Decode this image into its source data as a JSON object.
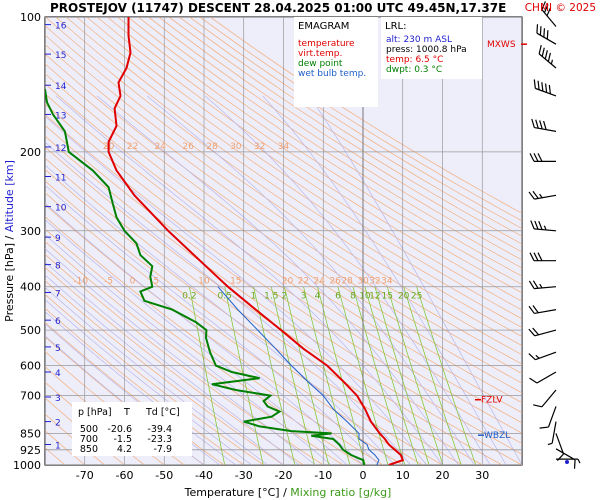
{
  "header": {
    "title": "PROSTEJOV (11747)   DESCENT   28.04.2025 01:00 UTC  49.45N,17.37E",
    "credit": "CHMI © 2025"
  },
  "colors": {
    "plot_bg": "#eeeefa",
    "temperature": "#e00000",
    "dewpoint": "#008000",
    "wetbulb": "#1f5fc8",
    "isotherm": "#8a8a8a",
    "dry_adiabat": "#f2b58a",
    "moist_adiabat": "#bbb7e8",
    "mixing_ratio": "#88c83a",
    "isobar": "#999999",
    "wind": "#000000"
  },
  "legend": {
    "title": "EMAGRAM",
    "items": [
      {
        "label": "temperature",
        "color": "#e00000"
      },
      {
        "label": "virt.temp.",
        "color": "#e00000"
      },
      {
        "label": "dew point",
        "color": "#008000"
      },
      {
        "label": "wet bulb temp.",
        "color": "#1f5fc8"
      }
    ]
  },
  "lrl": {
    "title": "LRL:",
    "alt": "alt: 230 m ASL",
    "press": "press: 1000.8 hPa",
    "temp": "temp: 6.5 °C",
    "dwpt": "dwpt: 0.3 °C"
  },
  "table": {
    "headers": [
      "p [hPa]",
      "T",
      "Td [°C]"
    ],
    "rows": [
      [
        "500",
        "-20.6",
        "-39.4"
      ],
      [
        "700",
        "-1.5",
        "-23.3"
      ],
      [
        "850",
        "4.2",
        "-7.9"
      ]
    ]
  },
  "markers": [
    "MXWS",
    "FZLV",
    "WBZL"
  ],
  "chart_data": {
    "type": "line",
    "title": "PROSTEJOV (11747)   DESCENT   28.04.2025 01:00 UTC  49.45N,17.37E",
    "xlabel": "Temperature [°C]  /  Mixing ratio [g/kg]",
    "ylabel": "Pressure [hPa]  /  Altitude [km]",
    "xlim": [
      -80,
      40
    ],
    "ylim": [
      1000,
      100
    ],
    "y_scale": "log-pressure",
    "x_ticks": [
      -70,
      -60,
      -50,
      -40,
      -30,
      -20,
      -10,
      0,
      10,
      20,
      30
    ],
    "pressure_ticks": [
      100,
      200,
      300,
      400,
      500,
      600,
      700,
      850,
      925,
      1000
    ],
    "altitude_km_ticks": [
      {
        "km": 1,
        "p": 900
      },
      {
        "km": 2,
        "p": 800
      },
      {
        "km": 3,
        "p": 705
      },
      {
        "km": 4,
        "p": 620
      },
      {
        "km": 5,
        "p": 545
      },
      {
        "km": 6,
        "p": 475
      },
      {
        "km": 7,
        "p": 412
      },
      {
        "km": 8,
        "p": 357
      },
      {
        "km": 9,
        "p": 310
      },
      {
        "km": 10,
        "p": 265
      },
      {
        "km": 11,
        "p": 227
      },
      {
        "km": 12,
        "p": 195
      },
      {
        "km": 13,
        "p": 165
      },
      {
        "km": 14,
        "p": 142
      },
      {
        "km": 15,
        "p": 121
      },
      {
        "km": 16,
        "p": 104
      }
    ],
    "dry_adiabat_labels": [
      {
        "label": "20",
        "t": -64,
        "p": 200
      },
      {
        "label": "22",
        "t": -58,
        "p": 200
      },
      {
        "label": "24",
        "t": -51,
        "p": 200
      },
      {
        "label": "26",
        "t": -44,
        "p": 200
      },
      {
        "label": "28",
        "t": -38,
        "p": 200
      },
      {
        "label": "30",
        "t": -32,
        "p": 200
      },
      {
        "label": "32",
        "t": -26,
        "p": 200
      },
      {
        "label": "34",
        "t": -20,
        "p": 200
      },
      {
        "label": "-10",
        "t": -71,
        "p": 400
      },
      {
        "label": "-5",
        "t": -64,
        "p": 400
      },
      {
        "label": "0",
        "t": -58,
        "p": 400
      },
      {
        "label": "5",
        "t": -52,
        "p": 400
      },
      {
        "label": "10",
        "t": -40,
        "p": 400
      },
      {
        "label": "15",
        "t": -32,
        "p": 400
      },
      {
        "label": "20",
        "t": -19,
        "p": 400
      },
      {
        "label": "22",
        "t": -15,
        "p": 400
      },
      {
        "label": "24",
        "t": -11,
        "p": 400
      },
      {
        "label": "26",
        "t": -7,
        "p": 400
      },
      {
        "label": "28",
        "t": -4,
        "p": 400
      },
      {
        "label": "30",
        "t": 0,
        "p": 400
      },
      {
        "label": "32",
        "t": 3,
        "p": 400
      },
      {
        "label": "34",
        "t": 6,
        "p": 400
      }
    ],
    "mixing_ratio_lines": [
      0.2,
      0.5,
      1,
      1.5,
      2,
      3,
      4,
      6,
      8,
      10,
      12,
      15,
      20,
      25
    ],
    "series": [
      {
        "name": "temperature",
        "points": [
          {
            "p": 1000,
            "t": 6.5
          },
          {
            "p": 975,
            "t": 10.0
          },
          {
            "p": 950,
            "t": 9.5
          },
          {
            "p": 925,
            "t": 8.0
          },
          {
            "p": 900,
            "t": 6.5
          },
          {
            "p": 875,
            "t": 5.5
          },
          {
            "p": 850,
            "t": 4.2
          },
          {
            "p": 800,
            "t": 2.0
          },
          {
            "p": 750,
            "t": 0.5
          },
          {
            "p": 700,
            "t": -1.5
          },
          {
            "p": 650,
            "t": -5.0
          },
          {
            "p": 600,
            "t": -9.0
          },
          {
            "p": 550,
            "t": -15.0
          },
          {
            "p": 500,
            "t": -20.6
          },
          {
            "p": 450,
            "t": -27.0
          },
          {
            "p": 400,
            "t": -34.0
          },
          {
            "p": 350,
            "t": -41.0
          },
          {
            "p": 300,
            "t": -49.0
          },
          {
            "p": 250,
            "t": -57.5
          },
          {
            "p": 220,
            "t": -62.0
          },
          {
            "p": 200,
            "t": -64.0
          },
          {
            "p": 190,
            "t": -64.0
          },
          {
            "p": 175,
            "t": -62.0
          },
          {
            "p": 160,
            "t": -62.5
          },
          {
            "p": 150,
            "t": -61.0
          },
          {
            "p": 140,
            "t": -61.5
          },
          {
            "p": 130,
            "t": -59.5
          },
          {
            "p": 120,
            "t": -58.5
          },
          {
            "p": 110,
            "t": -59.0
          },
          {
            "p": 100,
            "t": -59.0
          }
        ]
      },
      {
        "name": "dew point",
        "points": [
          {
            "p": 1000,
            "t": 0.3
          },
          {
            "p": 975,
            "t": 0.0
          },
          {
            "p": 950,
            "t": -3.0
          },
          {
            "p": 925,
            "t": -5.0
          },
          {
            "p": 900,
            "t": -6.0
          },
          {
            "p": 875,
            "t": -7.5
          },
          {
            "p": 860,
            "t": -13.0
          },
          {
            "p": 850,
            "t": -7.9
          },
          {
            "p": 840,
            "t": -18.0
          },
          {
            "p": 820,
            "t": -26.0
          },
          {
            "p": 800,
            "t": -30.0
          },
          {
            "p": 780,
            "t": -23.0
          },
          {
            "p": 760,
            "t": -21.0
          },
          {
            "p": 740,
            "t": -24.0
          },
          {
            "p": 720,
            "t": -25.0
          },
          {
            "p": 700,
            "t": -23.3
          },
          {
            "p": 680,
            "t": -32.0
          },
          {
            "p": 660,
            "t": -38.0
          },
          {
            "p": 640,
            "t": -26.0
          },
          {
            "p": 620,
            "t": -33.0
          },
          {
            "p": 600,
            "t": -37.0
          },
          {
            "p": 560,
            "t": -38.5
          },
          {
            "p": 520,
            "t": -39.5
          },
          {
            "p": 500,
            "t": -39.4
          },
          {
            "p": 480,
            "t": -42.0
          },
          {
            "p": 450,
            "t": -48.0
          },
          {
            "p": 430,
            "t": -55.0
          },
          {
            "p": 410,
            "t": -56.0
          },
          {
            "p": 400,
            "t": -53.0
          },
          {
            "p": 380,
            "t": -53.5
          },
          {
            "p": 360,
            "t": -53.0
          },
          {
            "p": 340,
            "t": -56.0
          },
          {
            "p": 320,
            "t": -57.0
          },
          {
            "p": 300,
            "t": -60.0
          },
          {
            "p": 280,
            "t": -62.0
          },
          {
            "p": 260,
            "t": -63.0
          },
          {
            "p": 240,
            "t": -64.0
          },
          {
            "p": 220,
            "t": -68.0
          },
          {
            "p": 200,
            "t": -74.0
          },
          {
            "p": 180,
            "t": -75.0
          },
          {
            "p": 165,
            "t": -78.0
          },
          {
            "p": 155,
            "t": -79.5
          },
          {
            "p": 145,
            "t": -80.0
          }
        ]
      },
      {
        "name": "wet bulb temp.",
        "points": [
          {
            "p": 1000,
            "t": 3.5
          },
          {
            "p": 975,
            "t": 4.0
          },
          {
            "p": 950,
            "t": 3.0
          },
          {
            "p": 925,
            "t": 1.5
          },
          {
            "p": 900,
            "t": 1.0
          },
          {
            "p": 875,
            "t": -1.0
          },
          {
            "p": 850,
            "t": -1.0
          },
          {
            "p": 800,
            "t": -4.0
          },
          {
            "p": 750,
            "t": -7.5
          },
          {
            "p": 700,
            "t": -10.0
          },
          {
            "p": 650,
            "t": -14.0
          },
          {
            "p": 600,
            "t": -18.0
          },
          {
            "p": 550,
            "t": -22.0
          },
          {
            "p": 500,
            "t": -26.5
          },
          {
            "p": 450,
            "t": -31.5
          },
          {
            "p": 400,
            "t": -36.5
          }
        ]
      }
    ],
    "level_markers": [
      {
        "label": "MXWS",
        "p": 115
      },
      {
        "label": "FZLV",
        "p": 715
      },
      {
        "label": "WBZL",
        "p": 858
      }
    ],
    "wind_barbs": [
      {
        "p": 105,
        "dir": 320,
        "kt": 30
      },
      {
        "p": 115,
        "dir": 300,
        "kt": 40
      },
      {
        "p": 130,
        "dir": 310,
        "kt": 45
      },
      {
        "p": 150,
        "dir": 290,
        "kt": 50
      },
      {
        "p": 180,
        "dir": 280,
        "kt": 40
      },
      {
        "p": 210,
        "dir": 270,
        "kt": 30
      },
      {
        "p": 250,
        "dir": 260,
        "kt": 25
      },
      {
        "p": 300,
        "dir": 275,
        "kt": 35
      },
      {
        "p": 350,
        "dir": 270,
        "kt": 30
      },
      {
        "p": 400,
        "dir": 265,
        "kt": 25
      },
      {
        "p": 450,
        "dir": 260,
        "kt": 20
      },
      {
        "p": 500,
        "dir": 255,
        "kt": 20
      },
      {
        "p": 560,
        "dir": 250,
        "kt": 15
      },
      {
        "p": 620,
        "dir": 240,
        "kt": 10
      },
      {
        "p": 680,
        "dir": 220,
        "kt": 10
      },
      {
        "p": 740,
        "dir": 200,
        "kt": 10
      },
      {
        "p": 800,
        "dir": 190,
        "kt": 5
      },
      {
        "p": 850,
        "dir": 160,
        "kt": 10
      },
      {
        "p": 920,
        "dir": 120,
        "kt": 10
      },
      {
        "p": 970,
        "dir": 90,
        "kt": 5
      }
    ]
  }
}
